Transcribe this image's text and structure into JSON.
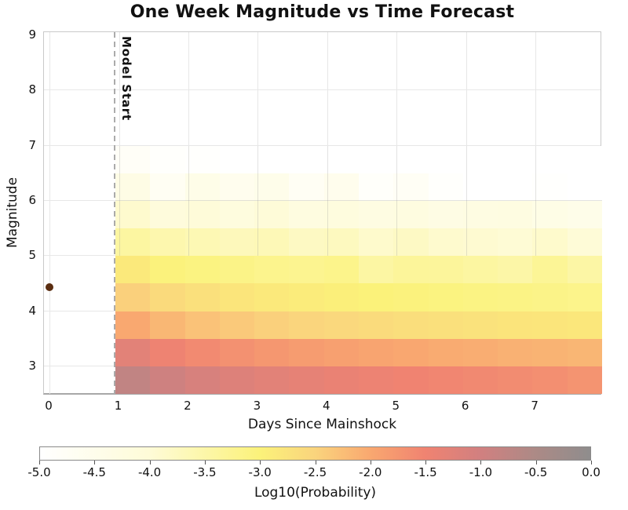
{
  "title": "One Week Magnitude vs Time Forecast",
  "x_axis": {
    "label": "Days Since Mainshock",
    "ticks": [
      "0",
      "1",
      "2",
      "3",
      "4",
      "5",
      "6",
      "7"
    ],
    "tick_values": [
      0,
      1,
      2,
      3,
      4,
      5,
      6,
      7
    ]
  },
  "y_axis": {
    "label": "Magnitude",
    "ticks": [
      "9",
      "8",
      "7",
      "6",
      "5",
      "4",
      "3"
    ],
    "tick_values": [
      9,
      8,
      7,
      6,
      5,
      4,
      3
    ]
  },
  "model_start": {
    "label": "Model Start",
    "day": 0.95,
    "line_color": "#ababab"
  },
  "mainshock": {
    "day": 0,
    "magnitude": 4.44,
    "color": "#5a2d10"
  },
  "colorbar": {
    "label": "Log10(Probability)",
    "ticks": [
      "-5.0",
      "-4.5",
      "-4.0",
      "-3.5",
      "-3.0",
      "-2.5",
      "-2.0",
      "-1.5",
      "-1.0",
      "-0.5",
      "0.0"
    ],
    "tick_values": [
      -5.0,
      -4.5,
      -4.0,
      -3.5,
      -3.0,
      -2.5,
      -2.0,
      -1.5,
      -1.0,
      -0.5,
      0.0
    ],
    "min": -5.0,
    "max": 0.0,
    "stops": [
      [
        -5.0,
        "#ffffff"
      ],
      [
        -4.0,
        "#fefbd7"
      ],
      [
        -3.0,
        "#fbf27a"
      ],
      [
        -2.5,
        "#fad47d"
      ],
      [
        -2.0,
        "#f9a870"
      ],
      [
        -1.5,
        "#f08371"
      ],
      [
        -1.0,
        "#d18080"
      ],
      [
        -0.5,
        "#ac8a86"
      ],
      [
        0.0,
        "#8f8d8d"
      ]
    ]
  },
  "chart_data": {
    "type": "heatmap",
    "title": "One Week Magnitude vs Time Forecast",
    "xlabel": "Days Since Mainshock",
    "ylabel": "Magnitude",
    "value_label": "Log10(Probability)",
    "xlim": [
      -0.08,
      7.96
    ],
    "ylim": [
      2.47,
      9.06
    ],
    "grid": true,
    "x_bin_start": 0.95,
    "x_bin_width": 0.5007,
    "n_cols": 14,
    "mag_bins": [
      [
        6.5,
        7.0
      ],
      [
        6.0,
        6.5
      ],
      [
        5.5,
        6.0
      ],
      [
        5.0,
        5.5
      ],
      [
        4.5,
        5.0
      ],
      [
        4.0,
        4.5
      ],
      [
        3.5,
        4.0
      ],
      [
        3.0,
        3.5
      ],
      [
        2.5,
        3.0
      ]
    ],
    "values_log10_probability": [
      [
        -4.8,
        -4.92,
        -4.96,
        -5.0,
        -5.0,
        -5.0,
        -5.0,
        -5.0,
        -5.0,
        -5.0,
        -5.0,
        -5.0,
        -5.0,
        -5.0
      ],
      [
        -4.35,
        -4.7,
        -4.42,
        -4.58,
        -4.48,
        -4.72,
        -4.55,
        -4.88,
        -4.75,
        -4.92,
        -5.0,
        -5.0,
        -4.95,
        -5.0
      ],
      [
        -3.9,
        -4.12,
        -4.06,
        -4.18,
        -4.02,
        -4.22,
        -4.18,
        -4.28,
        -4.22,
        -4.32,
        -4.28,
        -4.25,
        -4.38,
        -4.45
      ],
      [
        -3.42,
        -3.56,
        -3.62,
        -3.7,
        -3.66,
        -3.78,
        -3.74,
        -3.88,
        -3.8,
        -3.9,
        -3.94,
        -3.98,
        -3.88,
        -4.0
      ],
      [
        -2.85,
        -3.02,
        -3.08,
        -3.14,
        -3.2,
        -3.24,
        -3.18,
        -3.44,
        -3.34,
        -3.36,
        -3.42,
        -3.48,
        -3.3,
        -3.46
      ],
      [
        -2.45,
        -2.6,
        -2.7,
        -2.78,
        -2.85,
        -2.9,
        -2.95,
        -3.0,
        -3.03,
        -3.06,
        -3.1,
        -3.12,
        -3.15,
        -3.18
      ],
      [
        -2.0,
        -2.17,
        -2.29,
        -2.38,
        -2.45,
        -2.52,
        -2.57,
        -2.62,
        -2.66,
        -2.7,
        -2.73,
        -2.76,
        -2.79,
        -2.82
      ],
      [
        -1.28,
        -1.46,
        -1.59,
        -1.69,
        -1.77,
        -1.84,
        -1.89,
        -1.94,
        -1.99,
        -2.03,
        -2.06,
        -2.1,
        -2.13,
        -2.16
      ],
      [
        -0.78,
        -0.96,
        -1.09,
        -1.19,
        -1.27,
        -1.34,
        -1.4,
        -1.45,
        -1.5,
        -1.54,
        -1.58,
        -1.62,
        -1.66,
        -1.73
      ]
    ],
    "mainshock_point": {
      "x": 0,
      "y": 4.44
    }
  }
}
